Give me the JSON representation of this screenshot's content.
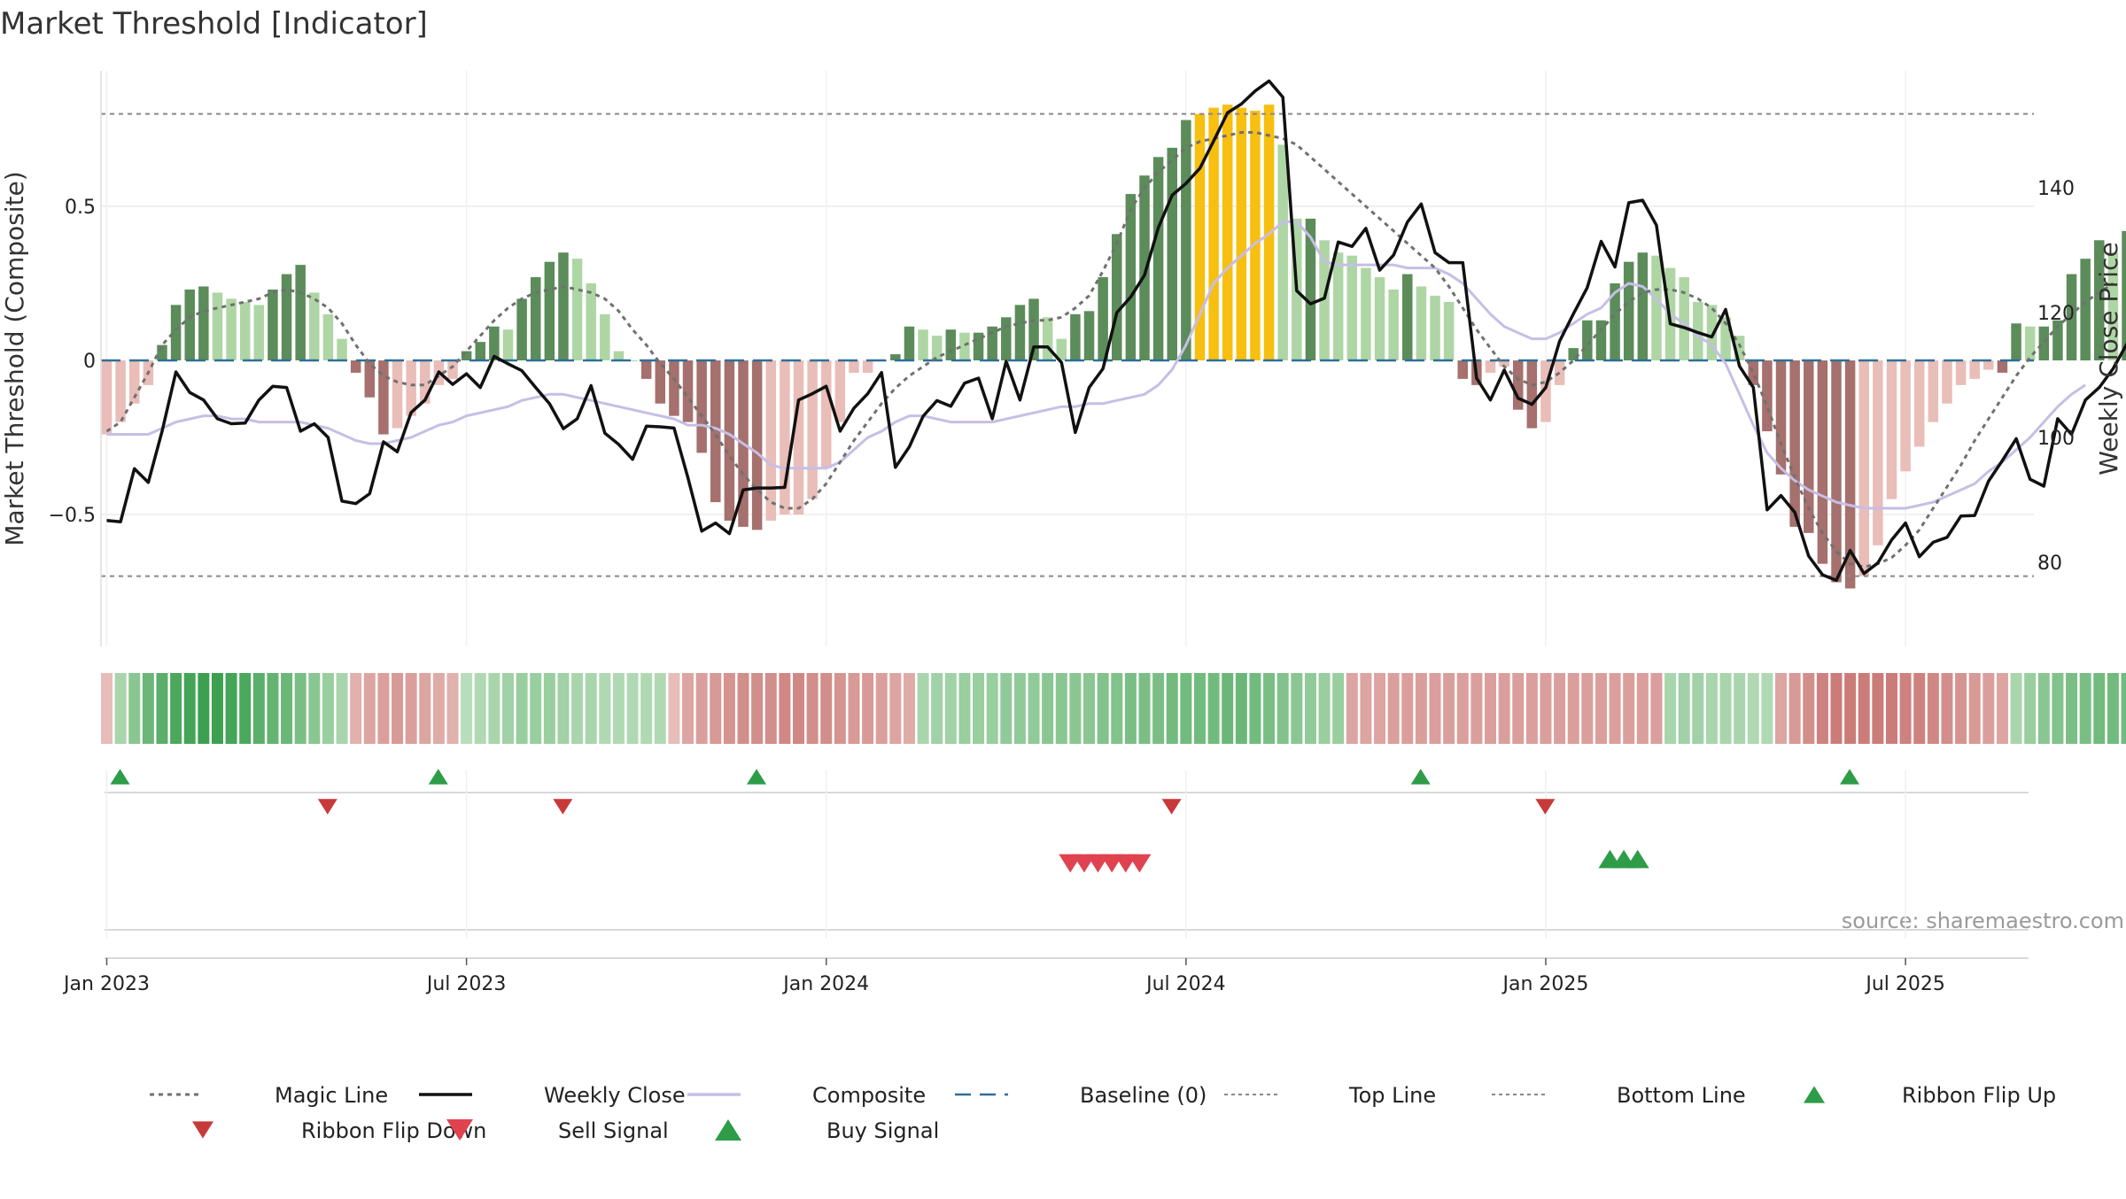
{
  "chart_data": {
    "type": "bar",
    "title": "Market Threshold [Indicator]",
    "ylabel_left": "Market Threshold (Composite)",
    "ylabel_right": "Weekly Close Price",
    "source": "source: sharemaestro.com",
    "y_left_ticks": [
      {
        "value": 0.5,
        "label": "0.5"
      },
      {
        "value": 0,
        "label": "0"
      },
      {
        "value": -0.5,
        "label": "−0.5"
      }
    ],
    "y_right_ticks": [
      {
        "value": 140,
        "label": "140"
      },
      {
        "value": 120,
        "label": "120"
      },
      {
        "value": 100,
        "label": "100"
      },
      {
        "value": 80,
        "label": "80"
      }
    ],
    "x_ticks": [
      {
        "week": 0,
        "label": "Jan 2023"
      },
      {
        "week": 26,
        "label": "Jul 2023"
      },
      {
        "week": 52,
        "label": "Jan 2024"
      },
      {
        "week": 78,
        "label": "Jul 2024"
      },
      {
        "week": 104,
        "label": "Jan 2025"
      },
      {
        "week": 130,
        "label": "Jul 2025"
      }
    ],
    "ylim_left": [
      -0.92,
      0.94
    ],
    "ylim_right": [
      70.4,
      163.0
    ],
    "top_line": 0.8,
    "bottom_line": -0.7,
    "baseline": 0,
    "composite_bars": [
      -0.24,
      -0.2,
      -0.14,
      -0.08,
      0.05,
      0.18,
      0.23,
      0.24,
      0.22,
      0.2,
      0.19,
      0.18,
      0.23,
      0.28,
      0.31,
      0.22,
      0.15,
      0.07,
      -0.04,
      -0.12,
      -0.24,
      -0.22,
      -0.18,
      -0.14,
      -0.08,
      -0.06,
      0.03,
      0.06,
      0.11,
      0.1,
      0.2,
      0.27,
      0.32,
      0.35,
      0.33,
      0.25,
      0.15,
      0.03,
      0,
      -0.06,
      -0.14,
      -0.18,
      -0.2,
      -0.3,
      -0.46,
      -0.52,
      -0.54,
      -0.55,
      -0.52,
      -0.5,
      -0.5,
      -0.45,
      -0.35,
      -0.2,
      -0.04,
      -0.04,
      0,
      0.02,
      0.11,
      0.1,
      0.08,
      0.1,
      0.09,
      0.09,
      0.11,
      0.14,
      0.18,
      0.2,
      0.14,
      0.07,
      0.15,
      0.16,
      0.27,
      0.41,
      0.54,
      0.6,
      0.66,
      0.69,
      0.78,
      0.8,
      0.82,
      0.83,
      0.82,
      0.81,
      0.83,
      0.7,
      0.46,
      0.46,
      0.39,
      0.35,
      0.34,
      0.3,
      0.27,
      0.23,
      0.28,
      0.24,
      0.21,
      0.19,
      -0.06,
      -0.08,
      -0.04,
      -0.02,
      -0.16,
      -0.22,
      -0.2,
      -0.08,
      0.04,
      0.13,
      0.13,
      0.25,
      0.32,
      0.35,
      0.34,
      0.3,
      0.27,
      0.19,
      0.18,
      0.14,
      0.08,
      -0.08,
      -0.23,
      -0.37,
      -0.54,
      -0.56,
      -0.66,
      -0.72,
      -0.74,
      -0.7,
      -0.6,
      -0.45,
      -0.36,
      -0.28,
      -0.2,
      -0.14,
      -0.08,
      -0.06,
      -0.03,
      -0.04,
      0.12,
      0.11,
      0.11,
      0.13,
      0.28,
      0.33,
      0.39,
      0.35,
      0.42
    ],
    "magic_line": [
      -0.23,
      -0.2,
      -0.12,
      -0.04,
      0.05,
      0.1,
      0.14,
      0.16,
      0.17,
      0.18,
      0.19,
      0.2,
      0.22,
      0.23,
      0.22,
      0.2,
      0.17,
      0.12,
      0.05,
      -0.01,
      -0.05,
      -0.07,
      -0.08,
      -0.08,
      -0.05,
      -0.02,
      0.03,
      0.08,
      0.13,
      0.17,
      0.2,
      0.22,
      0.23,
      0.24,
      0.23,
      0.22,
      0.2,
      0.16,
      0.1,
      0.05,
      -0.01,
      -0.06,
      -0.12,
      -0.18,
      -0.24,
      -0.31,
      -0.37,
      -0.42,
      -0.46,
      -0.48,
      -0.48,
      -0.45,
      -0.4,
      -0.33,
      -0.26,
      -0.2,
      -0.14,
      -0.09,
      -0.05,
      -0.02,
      0.01,
      0.03,
      0.05,
      0.07,
      0.09,
      0.11,
      0.12,
      0.13,
      0.13,
      0.14,
      0.17,
      0.21,
      0.29,
      0.38,
      0.49,
      0.56,
      0.61,
      0.65,
      0.69,
      0.71,
      0.72,
      0.73,
      0.74,
      0.74,
      0.73,
      0.72,
      0.7,
      0.66,
      0.62,
      0.58,
      0.54,
      0.5,
      0.46,
      0.42,
      0.38,
      0.34,
      0.3,
      0.24,
      0.17,
      0.1,
      0.04,
      -0.02,
      -0.06,
      -0.08,
      -0.07,
      -0.04,
      0,
      0.05,
      0.1,
      0.15,
      0.19,
      0.22,
      0.23,
      0.23,
      0.22,
      0.2,
      0.17,
      0.12,
      0.05,
      -0.04,
      -0.15,
      -0.27,
      -0.38,
      -0.48,
      -0.56,
      -0.62,
      -0.66,
      -0.67,
      -0.66,
      -0.64,
      -0.6,
      -0.55,
      -0.48,
      -0.41,
      -0.34,
      -0.26,
      -0.19,
      -0.12,
      -0.05,
      0.01,
      0.06,
      0.11,
      0.15,
      0.19,
      0.22,
      0.25
    ],
    "composite_line": [
      -0.24,
      -0.24,
      -0.24,
      -0.24,
      -0.22,
      -0.2,
      -0.19,
      -0.18,
      -0.18,
      -0.19,
      -0.19,
      -0.2,
      -0.2,
      -0.2,
      -0.2,
      -0.21,
      -0.22,
      -0.24,
      -0.26,
      -0.27,
      -0.27,
      -0.26,
      -0.25,
      -0.23,
      -0.21,
      -0.2,
      -0.18,
      -0.17,
      -0.16,
      -0.15,
      -0.13,
      -0.12,
      -0.11,
      -0.11,
      -0.12,
      -0.13,
      -0.14,
      -0.15,
      -0.16,
      -0.17,
      -0.18,
      -0.19,
      -0.21,
      -0.21,
      -0.22,
      -0.24,
      -0.27,
      -0.3,
      -0.34,
      -0.35,
      -0.35,
      -0.35,
      -0.35,
      -0.33,
      -0.29,
      -0.25,
      -0.23,
      -0.2,
      -0.18,
      -0.18,
      -0.19,
      -0.2,
      -0.2,
      -0.2,
      -0.2,
      -0.19,
      -0.18,
      -0.17,
      -0.16,
      -0.15,
      -0.15,
      -0.14,
      -0.14,
      -0.13,
      -0.12,
      -0.11,
      -0.08,
      -0.03,
      0.05,
      0.15,
      0.25,
      0.3,
      0.34,
      0.38,
      0.41,
      0.45,
      0.45,
      0.4,
      0.32,
      0.31,
      0.31,
      0.31,
      0.31,
      0.31,
      0.3,
      0.3,
      0.3,
      0.28,
      0.25,
      0.2,
      0.15,
      0.11,
      0.09,
      0.07,
      0.07,
      0.09,
      0.12,
      0.15,
      0.17,
      0.22,
      0.25,
      0.24,
      0.2,
      0.15,
      0.12,
      0.08,
      0.05,
      -0.01,
      -0.11,
      -0.21,
      -0.3,
      -0.35,
      -0.39,
      -0.42,
      -0.44,
      -0.46,
      -0.47,
      -0.48,
      -0.48,
      -0.48,
      -0.48,
      -0.47,
      -0.46,
      -0.44,
      -0.42,
      -0.4,
      -0.36,
      -0.33,
      -0.29,
      -0.25,
      -0.2,
      -0.15,
      -0.11,
      -0.08
    ],
    "weekly_close": [
      86.7,
      86.5,
      95,
      92.8,
      101,
      110.5,
      107.2,
      106,
      103,
      102.2,
      102.3,
      106,
      108.2,
      108,
      101,
      102.2,
      100,
      89.8,
      89.4,
      91,
      99.3,
      97.7,
      104,
      106,
      110.5,
      108.5,
      110.2,
      108,
      113,
      111.8,
      110.7,
      108,
      105.4,
      101.4,
      103,
      108.3,
      100.7,
      98.9,
      96.5,
      101.8,
      101.7,
      101.5,
      93.6,
      85,
      86.3,
      84.6,
      91.6,
      91.9,
      91.9,
      92,
      106,
      107,
      108.2,
      101,
      104.7,
      107,
      110.4,
      95.2,
      98.5,
      103.4,
      105.9,
      105,
      108.7,
      109.5,
      103,
      112.2,
      106,
      114.5,
      114.5,
      112,
      100.8,
      108,
      111,
      120,
      122.5,
      126,
      133.6,
      138.8,
      140.7,
      143.1,
      147.5,
      152,
      153.4,
      155.5,
      157.1,
      154.5,
      123.5,
      121.4,
      122.3,
      131.3,
      130.6,
      133.5,
      126.8,
      129.2,
      134.5,
      137.4,
      129.6,
      128,
      128,
      109.5,
      106,
      110.8,
      106.3,
      105.3,
      108,
      115.4,
      119.8,
      124,
      131.4,
      127.3,
      137.6,
      138,
      134,
      118.2,
      117.6,
      116.8,
      116.1,
      120.5,
      111.4,
      108,
      88.4,
      90.7,
      88,
      81,
      78,
      77.1,
      81.9,
      78.2,
      79.9,
      83.6,
      86.3,
      80.9,
      83.2,
      84,
      87.4,
      87.5,
      93,
      96.3,
      99.8,
      93.3,
      92.2,
      103,
      100.5,
      106,
      108,
      111,
      115,
      114.7,
      119.2,
      113.3,
      120.5
    ],
    "ribbon_strength": [
      -0.2,
      0.3,
      0.5,
      0.7,
      0.8,
      0.9,
      0.95,
      1,
      1,
      0.95,
      0.9,
      0.8,
      0.75,
      0.7,
      0.6,
      0.5,
      0.4,
      0.3,
      -0.3,
      -0.4,
      -0.45,
      -0.5,
      -0.45,
      -0.4,
      -0.35,
      -0.3,
      0.2,
      0.25,
      0.3,
      0.35,
      0.4,
      0.4,
      0.4,
      0.35,
      0.3,
      0.3,
      0.25,
      0.25,
      0.25,
      0.25,
      0.25,
      -0.2,
      -0.4,
      -0.45,
      -0.5,
      -0.55,
      -0.6,
      -0.6,
      -0.6,
      -0.65,
      -0.65,
      -0.6,
      -0.6,
      -0.55,
      -0.5,
      -0.5,
      -0.45,
      -0.4,
      -0.35,
      0.3,
      0.35,
      0.35,
      0.4,
      0.4,
      0.4,
      0.45,
      0.45,
      0.45,
      0.5,
      0.5,
      0.5,
      0.5,
      0.55,
      0.55,
      0.6,
      0.6,
      0.6,
      0.65,
      0.65,
      0.65,
      0.65,
      0.7,
      0.7,
      0.65,
      0.6,
      0.55,
      0.5,
      0.45,
      0.4,
      0.4,
      -0.4,
      -0.4,
      -0.4,
      -0.45,
      -0.45,
      -0.45,
      -0.45,
      -0.45,
      -0.45,
      -0.45,
      -0.45,
      -0.45,
      -0.45,
      -0.45,
      -0.45,
      -0.45,
      -0.45,
      -0.45,
      -0.45,
      -0.45,
      -0.45,
      -0.45,
      -0.45,
      0.3,
      0.35,
      0.35,
      0.3,
      0.3,
      0.3,
      0.25,
      0.25,
      -0.4,
      -0.5,
      -0.6,
      -0.7,
      -0.75,
      -0.75,
      -0.75,
      -0.75,
      -0.75,
      -0.7,
      -0.7,
      -0.65,
      -0.6,
      -0.55,
      -0.5,
      -0.45,
      -0.4,
      0.3,
      0.4,
      0.5,
      0.55,
      0.6,
      0.6,
      0.65,
      0.65,
      0.65,
      0.65,
      0.65,
      0.65,
      0.7,
      0.7
    ],
    "ribbon_flip_up": [
      0,
      23,
      46,
      94,
      125
    ],
    "ribbon_flip_down": [
      15,
      32,
      76,
      103
    ],
    "sell_signal": [
      69,
      70,
      71,
      72,
      73,
      74
    ],
    "buy_signal": [
      108,
      109,
      110
    ],
    "legend": [
      "Magic Line",
      "Weekly Close",
      "Composite",
      "Baseline (0)",
      "Top Line",
      "Bottom Line",
      "Ribbon Flip Up",
      "Ribbon Flip Down",
      "Sell Signal",
      "Buy Signal"
    ],
    "colors": {
      "bull_dark": "#5c8c5a",
      "bull_light": "#aed6a4",
      "bear_dark": "#a5706d",
      "bear_light": "#e9bdb8",
      "extreme": "#f7bf0f",
      "weekly_close": "#111111",
      "composite_line": "#c7bee6",
      "magic_line": "#707070",
      "baseline": "#2f6f99",
      "threshold_lines": "#888888",
      "flip_up": "#2e9c48",
      "flip_down": "#c83a3a",
      "sell": "#e04250",
      "buy": "#2e9c48"
    }
  }
}
